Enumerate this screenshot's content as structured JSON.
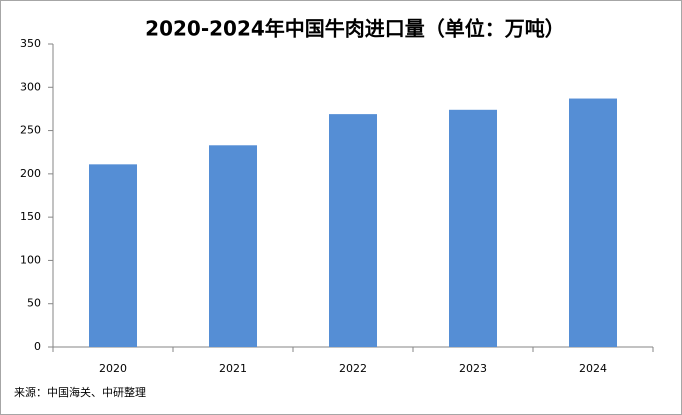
{
  "chart_data": {
    "type": "bar",
    "title": "2020-2024年中国牛肉进口量（单位：万吨）",
    "categories": [
      "2020",
      "2021",
      "2022",
      "2023",
      "2024"
    ],
    "values": [
      211,
      233,
      269,
      274,
      287
    ],
    "color": "#558ed5",
    "ylim": [
      0,
      350
    ],
    "yticks": [
      0,
      50,
      100,
      150,
      200,
      250,
      300,
      350
    ],
    "grid": false,
    "source": "来源：中国海关、中研整理"
  }
}
